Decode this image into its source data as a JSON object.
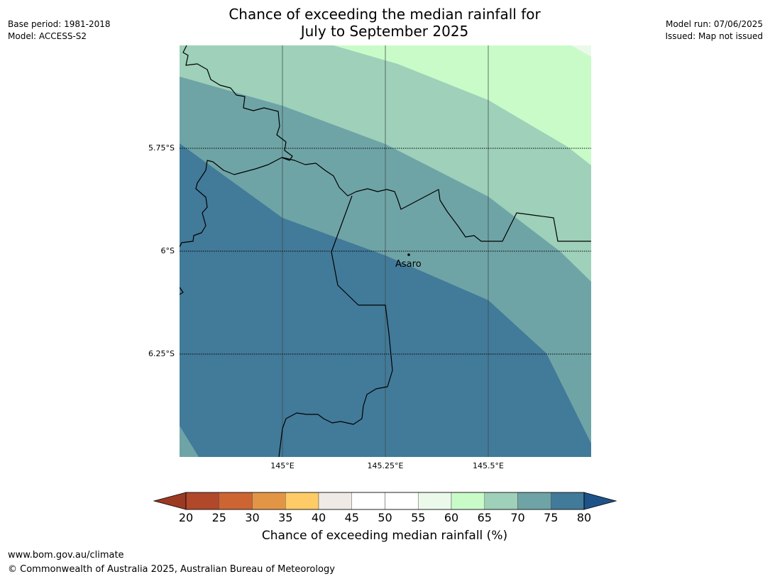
{
  "title_line1": "Chance of exceeding the median rainfall for",
  "title_line2": "July to September 2025",
  "meta_left": {
    "base_period": "Base period: 1981-2018",
    "model": "Model: ACCESS-S2"
  },
  "meta_right": {
    "model_run": "Model run: 07/06/2025",
    "issued": "Issued: Map not issued"
  },
  "lat_labels": [
    "5.75°S",
    "6°S",
    "6.25°S"
  ],
  "lon_labels": [
    "145°E",
    "145.25°E",
    "145.5°E"
  ],
  "place": {
    "name": "Asaro"
  },
  "colorbar": {
    "ticks": [
      "20",
      "25",
      "30",
      "35",
      "40",
      "45",
      "50",
      "55",
      "60",
      "65",
      "70",
      "75",
      "80"
    ],
    "label": "Chance of exceeding median rainfall (%)",
    "colors": [
      "#b1482a",
      "#cd6533",
      "#e39546",
      "#fecb66",
      "#efeae6",
      "#ffffff",
      "#ffffff",
      "#ebf9eb",
      "#c9fbc9",
      "#9ed0ba",
      "#6fa4a6",
      "#427a99"
    ],
    "under_color": "#9c3922",
    "over_color": "#1d5389"
  },
  "map_colors": {
    "c60_65": "#c9fbc9",
    "c65_70": "#9ed0ba",
    "c70_75": "#6fa4a6",
    "c75_80": "#427a99",
    "c55_60": "#ebf9eb"
  },
  "footer": {
    "url": "www.bom.gov.au/climate",
    "copyright": "© Commonwealth of Australia 2025, Australian Bureau of Meteorology"
  }
}
